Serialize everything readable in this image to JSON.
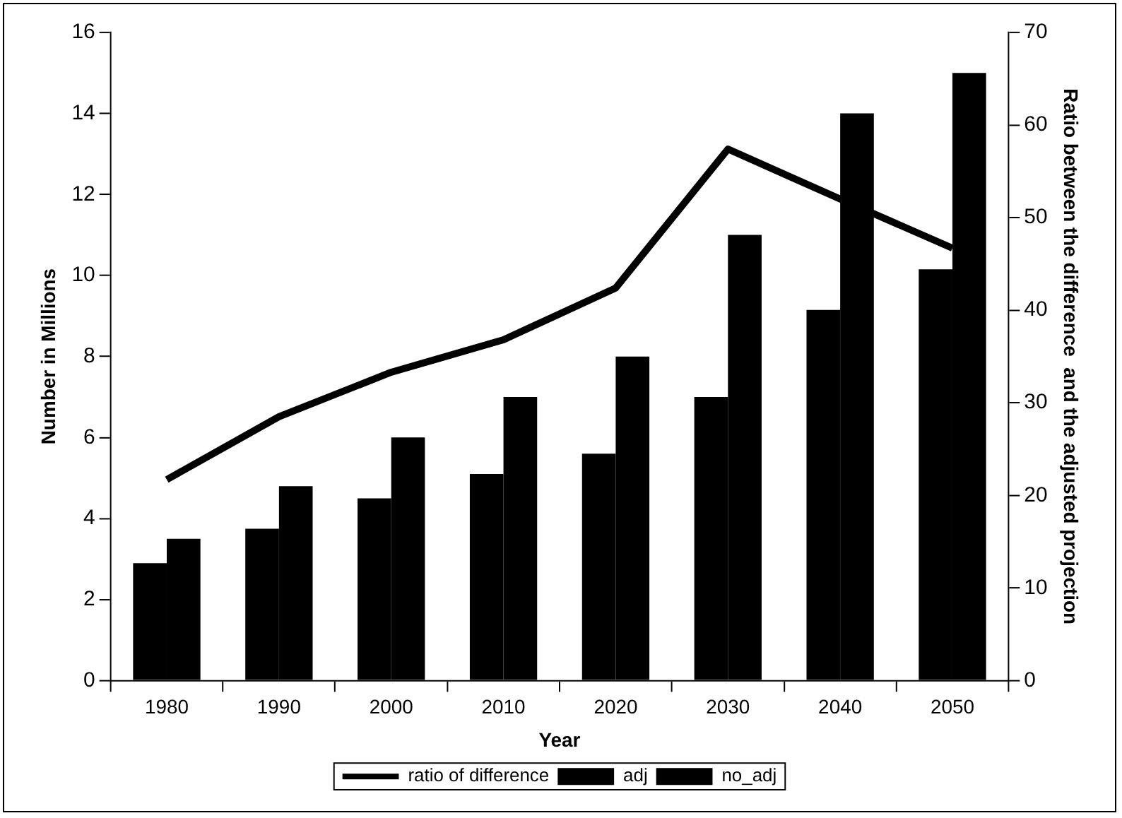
{
  "chart_data": {
    "type": "bar",
    "xlabel": "Year",
    "ylabel": "Number in Millions",
    "y2label": "Ratio between the difference  and the adjusted projection",
    "categories": [
      "1980",
      "1990",
      "2000",
      "2010",
      "2020",
      "2030",
      "2040",
      "2050"
    ],
    "series": [
      {
        "name": "adj",
        "color": "#000000",
        "values": [
          2.9,
          3.75,
          4.5,
          5.1,
          5.6,
          7.0,
          9.15,
          10.15
        ]
      },
      {
        "name": "no_adj",
        "color": "#000000",
        "values": [
          3.5,
          4.8,
          6,
          7,
          8,
          11,
          14,
          15
        ]
      },
      {
        "name": "ratio of difference",
        "type": "line",
        "axis": "y2",
        "color": "#000000",
        "values": [
          21.7,
          28.5,
          33.3,
          36.8,
          42.4,
          57.4,
          52,
          46.7
        ]
      }
    ],
    "ylim": [
      0,
      16
    ],
    "yticks": [
      0,
      2,
      4,
      6,
      8,
      10,
      12,
      14,
      16
    ],
    "y2lim": [
      0,
      70
    ],
    "y2ticks": [
      0,
      10,
      20,
      30,
      40,
      50,
      60,
      70
    ],
    "grid": false,
    "legend": "bottom",
    "marker": "none",
    "line_style": "solid"
  }
}
